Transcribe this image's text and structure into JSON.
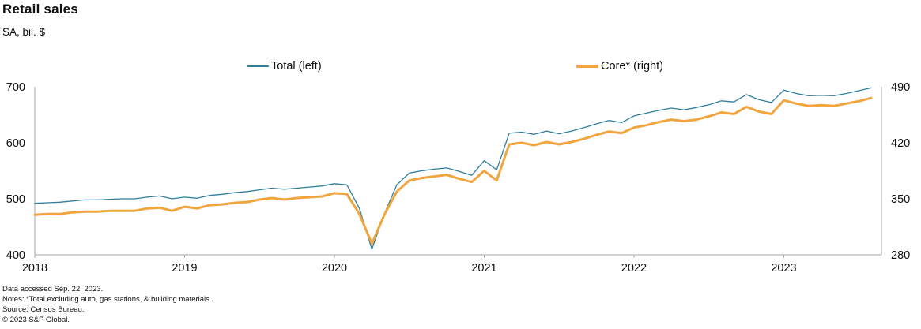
{
  "title": "Retail sales",
  "subtitle": "SA, bil. $",
  "legend": {
    "total_label": "Total (left)",
    "core_label": "Core* (right)"
  },
  "colors": {
    "total_line": "#2f7e9d",
    "core_line": "#f0a53e",
    "axis": "#a6a6a6",
    "text": "#111111"
  },
  "chart_data": {
    "type": "line",
    "title": "Retail sales",
    "ylabel_note": "SA, bil. $",
    "x_unit": "monthly",
    "x_start": "2018-01",
    "x_end": "2023-08",
    "x_tick_labels": [
      "2018",
      "2019",
      "2020",
      "2021",
      "2022",
      "2023"
    ],
    "left_axis": {
      "range": [
        400,
        700
      ],
      "ticks": [
        700,
        600,
        500,
        400
      ]
    },
    "right_axis": {
      "range": [
        280,
        490
      ],
      "ticks": [
        490,
        420,
        350,
        280
      ]
    },
    "grid": false,
    "legend_position": "top",
    "series": [
      {
        "name": "Total (left)",
        "axis": "left",
        "values": [
          492,
          493,
          494,
          496,
          498,
          498,
          499,
          500,
          500,
          503,
          505,
          500,
          503,
          501,
          506,
          508,
          511,
          513,
          516,
          519,
          517,
          519,
          521,
          523,
          527,
          525,
          483,
          410,
          473,
          525,
          546,
          550,
          553,
          555,
          549,
          542,
          568,
          552,
          617,
          619,
          615,
          621,
          616,
          621,
          627,
          634,
          640,
          636,
          648,
          653,
          658,
          662,
          659,
          663,
          668,
          675,
          673,
          686,
          677,
          672,
          694,
          688,
          684,
          685,
          684,
          688,
          693,
          698
        ]
      },
      {
        "name": "Core* (right)",
        "axis": "right",
        "values": [
          330,
          331,
          331,
          333,
          334,
          334,
          335,
          335,
          335,
          338,
          339,
          335,
          340,
          338,
          342,
          343,
          345,
          346,
          349,
          351,
          349,
          351,
          352,
          353,
          357,
          356,
          331,
          294,
          330,
          359,
          373,
          376,
          378,
          380,
          375,
          371,
          385,
          373,
          418,
          420,
          417,
          421,
          418,
          421,
          425,
          430,
          434,
          432,
          439,
          442,
          446,
          449,
          447,
          449,
          453,
          458,
          456,
          465,
          459,
          456,
          473,
          469,
          466,
          467,
          466,
          469,
          472,
          476
        ]
      }
    ]
  },
  "footer": {
    "line1": "Data accessed Sep. 22, 2023.",
    "line2": "Notes: *Total excluding auto, gas stations, & building materials.",
    "line3": "Source: Census Bureau.",
    "line4": "© 2023 S&P Global."
  }
}
